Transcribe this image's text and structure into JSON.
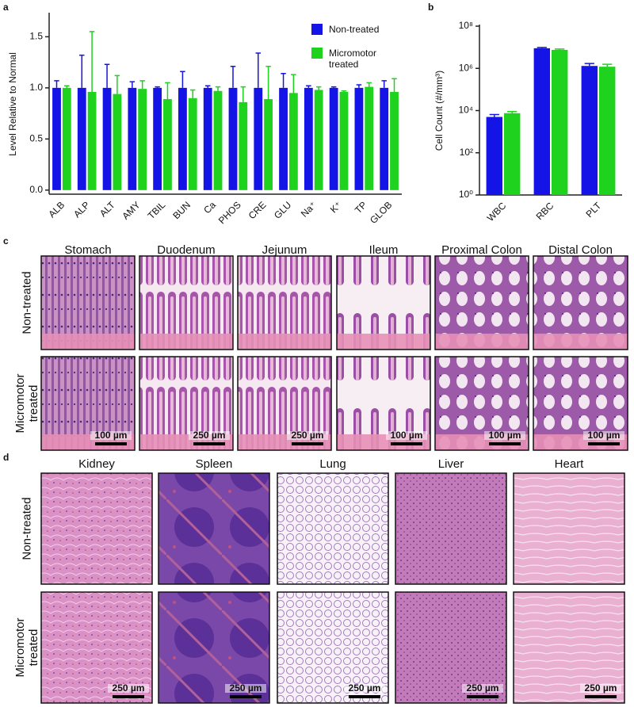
{
  "panel_labels": [
    "a",
    "b",
    "c",
    "d"
  ],
  "chart_data": [
    {
      "type": "bar",
      "ylabel": "Level Relative to Normal",
      "categories": [
        "ALB",
        "ALP",
        "ALT",
        "AMY",
        "TBIL",
        "BUN",
        "Ca",
        "PHOS",
        "CRE",
        "GLU",
        "Na⁺",
        "K⁺",
        "TP",
        "GLOB"
      ],
      "series": [
        {
          "name": "Non-treated",
          "color": "#1414e6",
          "values": [
            1.0,
            1.0,
            1.0,
            1.0,
            1.0,
            1.0,
            1.0,
            1.0,
            1.0,
            1.0,
            1.0,
            1.0,
            1.0,
            1.0
          ],
          "errors": [
            0.07,
            0.32,
            0.23,
            0.06,
            0.01,
            0.16,
            0.02,
            0.21,
            0.34,
            0.14,
            0.02,
            0.01,
            0.03,
            0.07
          ]
        },
        {
          "name": "Micromotor treated",
          "color": "#1ed21e",
          "values": [
            1.0,
            0.96,
            0.94,
            0.99,
            0.89,
            0.9,
            0.97,
            0.86,
            0.89,
            0.95,
            0.98,
            0.96,
            1.01,
            0.96
          ],
          "errors": [
            0.02,
            0.59,
            0.18,
            0.08,
            0.16,
            0.08,
            0.04,
            0.15,
            0.32,
            0.18,
            0.03,
            0.01,
            0.04,
            0.13
          ]
        }
      ],
      "ylim": [
        -0.04,
        1.72
      ],
      "yticks": [
        {
          "value": 0,
          "label": "0.0"
        },
        0.5,
        {
          "value": 1,
          "label": "1.0"
        },
        1.5
      ],
      "legend": "upper right"
    },
    {
      "type": "bar",
      "ylabel": "Cell Count (#/mm³)",
      "categories": [
        "WBC",
        "RBC",
        "PLT"
      ],
      "series": [
        {
          "name": "Non-treated",
          "color": "#1414e6",
          "values": [
            5000,
            9000000,
            1300000
          ],
          "errors": [
            1500,
            800000,
            400000
          ]
        },
        {
          "name": "Micromotor treated",
          "color": "#1ed21e",
          "values": [
            7500,
            7500000,
            1200000
          ],
          "errors": [
            1500,
            700000,
            350000
          ]
        }
      ],
      "ylim": [
        1,
        100000000
      ],
      "log_y": true,
      "yticks": [
        {
          "value": 1,
          "label": "10⁰"
        },
        {
          "value": 100,
          "label": "10²"
        },
        {
          "value": 10000,
          "label": "10⁴"
        },
        {
          "value": 1000000,
          "label": "10⁶"
        },
        {
          "value": 100000000,
          "label": "10⁸"
        }
      ]
    }
  ],
  "histology": {
    "gi": {
      "columns": [
        "Stomach",
        "Duodenum",
        "Jejunum",
        "Ileum",
        "Proximal Colon",
        "Distal Colon"
      ],
      "rows": [
        "Non-treated",
        "Micromotor treated"
      ],
      "scale_bars": [
        "100 µm",
        "250 µm",
        "250 µm",
        "100 µm",
        "100 µm",
        "100 µm"
      ]
    },
    "organs": {
      "columns": [
        "Kidney",
        "Spleen",
        "Lung",
        "Liver",
        "Heart"
      ],
      "rows": [
        "Non-treated",
        "Micromotor treated"
      ],
      "scale_bars": [
        "250 µm",
        "250 µm",
        "250 µm",
        "250 µm",
        "250 µm"
      ]
    }
  }
}
